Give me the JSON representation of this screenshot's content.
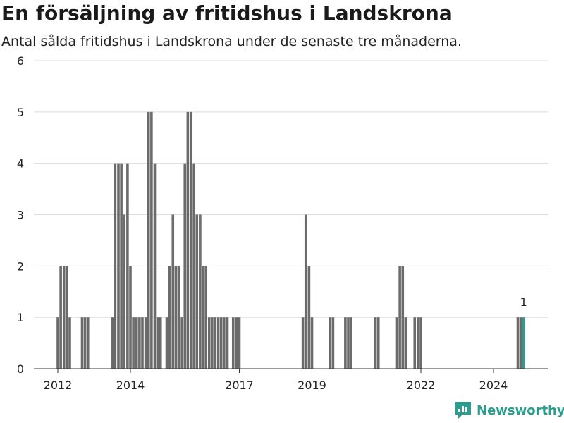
{
  "chart_data": {
    "type": "bar",
    "title": "En försäljning av fritidshus i Landskrona",
    "subtitle": "Antal sålda fritidshus i Landskrona under de senaste tre månaderna.",
    "xlabel": "",
    "ylabel": "",
    "ylim": [
      0,
      6
    ],
    "y_ticks": [
      "0",
      "1",
      "2",
      "3",
      "4",
      "5",
      "6"
    ],
    "x_ticks": [
      {
        "label": "2012",
        "x": 2012.0
      },
      {
        "label": "2014",
        "x": 2014.0
      },
      {
        "label": "2017",
        "x": 2017.0
      },
      {
        "label": "2019",
        "x": 2019.0
      },
      {
        "label": "2022",
        "x": 2022.0
      },
      {
        "label": "2024",
        "x": 2024.0
      }
    ],
    "grid": true,
    "colors": {
      "bar": "#6b6b6b",
      "highlight": "#2a9d8f",
      "grid": "#dcdcdc"
    },
    "series": [
      {
        "x": [
          2012.0,
          2012.08,
          2012.17,
          2012.25,
          2012.33,
          2012.67,
          2012.75,
          2012.83,
          2013.5,
          2013.58,
          2013.67,
          2013.75,
          2013.83,
          2013.92,
          2014.0,
          2014.08,
          2014.17,
          2014.25,
          2014.33,
          2014.42,
          2014.5,
          2014.58,
          2014.67,
          2014.75,
          2014.83,
          2015.0,
          2015.08,
          2015.17,
          2015.25,
          2015.33,
          2015.42,
          2015.5,
          2015.58,
          2015.67,
          2015.75,
          2015.83,
          2015.92,
          2016.0,
          2016.08,
          2016.17,
          2016.25,
          2016.33,
          2016.42,
          2016.5,
          2016.58,
          2016.67,
          2016.83,
          2016.92,
          2017.0,
          2018.75,
          2018.83,
          2018.92,
          2019.0,
          2019.5,
          2019.58,
          2019.92,
          2020.0,
          2020.08,
          2020.75,
          2020.83,
          2021.33,
          2021.42,
          2021.5,
          2021.58,
          2021.83,
          2021.92,
          2022.0,
          2024.67,
          2024.75,
          2024.83
        ],
        "values": [
          1,
          2,
          2,
          2,
          1,
          1,
          1,
          1,
          1,
          4,
          4,
          4,
          3,
          4,
          2,
          1,
          1,
          1,
          1,
          1,
          5,
          5,
          4,
          1,
          1,
          1,
          2,
          3,
          2,
          2,
          1,
          4,
          5,
          5,
          4,
          3,
          3,
          2,
          2,
          1,
          1,
          1,
          1,
          1,
          1,
          1,
          1,
          1,
          1,
          1,
          3,
          2,
          1,
          1,
          1,
          1,
          1,
          1,
          1,
          1,
          1,
          2,
          2,
          1,
          1,
          1,
          1,
          1,
          1,
          1
        ]
      }
    ],
    "annotations": [
      {
        "x": 2024.83,
        "text": "1"
      }
    ]
  },
  "brand": {
    "name": "Newsworthy",
    "icon": "newsworthy-logo-icon"
  }
}
